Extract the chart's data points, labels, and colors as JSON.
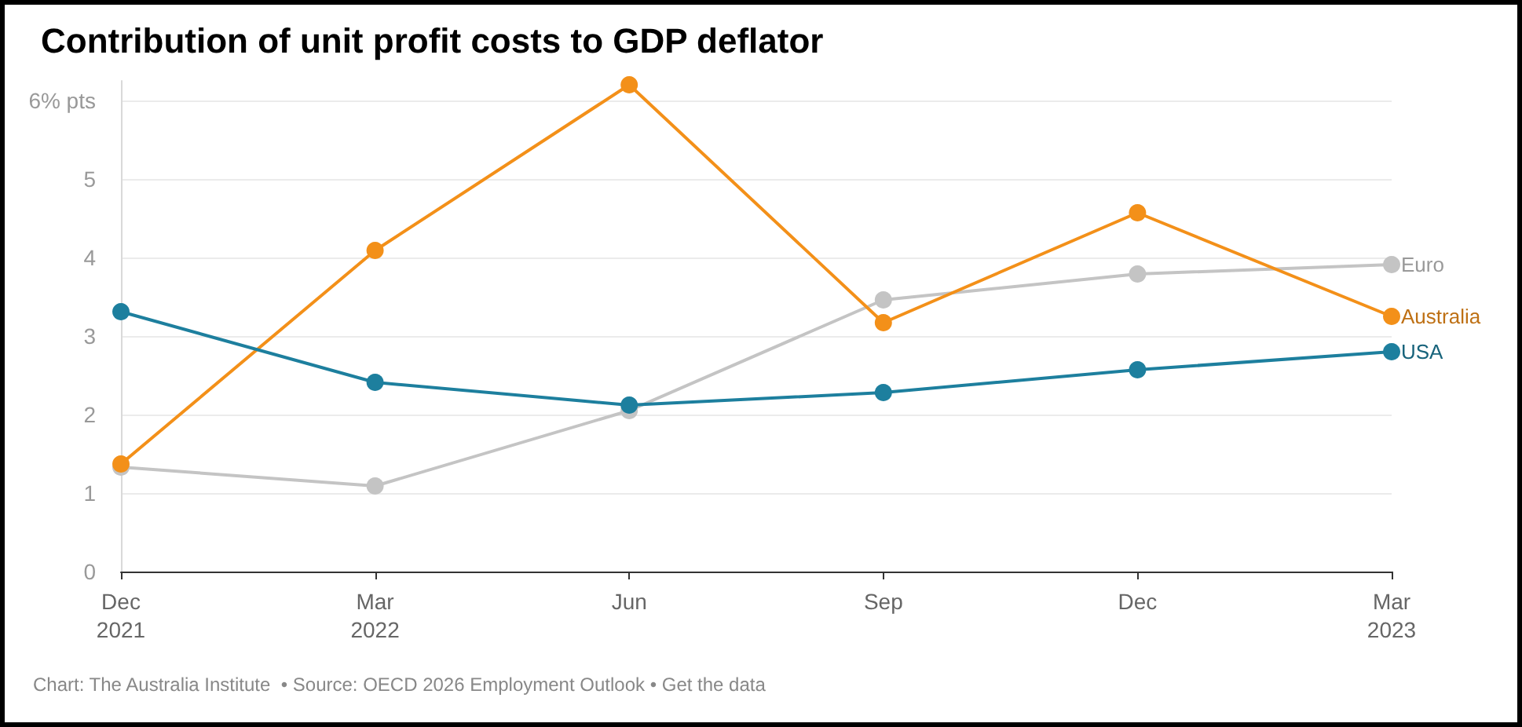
{
  "chart_data": {
    "type": "line",
    "title": "Contribution of unit profit costs to GDP deflator",
    "categories": [
      "Dec\n2021",
      "Mar\n2022",
      "Jun",
      "Sep",
      "Dec",
      "Mar\n2023"
    ],
    "series": [
      {
        "name": "Euro",
        "color": "#c4c4c4",
        "values": [
          1.33,
          1.09,
          2.05,
          3.46,
          3.79,
          3.91
        ]
      },
      {
        "name": "Australia",
        "color": "#f39019",
        "values": [
          1.37,
          4.09,
          6.2,
          3.17,
          4.57,
          3.25
        ]
      },
      {
        "name": "USA",
        "color": "#1d7f9e",
        "values": [
          3.31,
          2.41,
          2.12,
          2.28,
          2.57,
          2.8
        ]
      }
    ],
    "ylim": [
      0,
      6.25
    ],
    "yticks": [
      0,
      1,
      2,
      3,
      4,
      5,
      {
        "value": 6,
        "label": "6% pts"
      }
    ],
    "grid": "y",
    "legend": false,
    "marker": "circle",
    "line_style": "solid",
    "annotations": [
      "Chart: The Australia Institute  • Source: OECD 2026 Employment Outlook • Get the data"
    ]
  }
}
